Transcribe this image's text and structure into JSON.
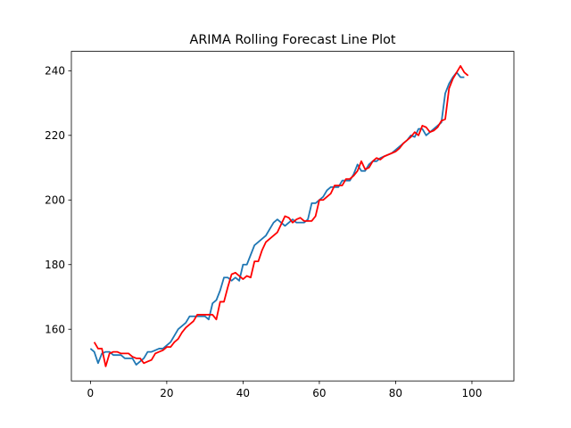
{
  "chart_data": {
    "type": "line",
    "title": "ARIMA Rolling Forecast Line Plot",
    "xlabel": "",
    "ylabel": "",
    "xlim": [
      -5,
      111
    ],
    "ylim": [
      144,
      246
    ],
    "xticks": [
      0,
      20,
      40,
      60,
      80,
      100
    ],
    "yticks": [
      160,
      180,
      200,
      220,
      240
    ],
    "grid": false,
    "series": [
      {
        "color": "#1f77b4",
        "values": [
          154,
          153,
          149.5,
          152.5,
          153,
          153,
          152,
          152,
          152,
          151,
          151,
          151,
          149,
          150,
          151,
          153,
          153,
          153.5,
          154,
          154,
          155,
          156,
          158,
          160,
          161,
          162,
          164,
          164,
          164,
          164,
          164,
          163,
          168,
          169,
          172,
          176,
          176,
          175,
          176,
          175,
          180,
          180,
          183,
          186,
          187,
          188,
          189,
          191,
          193,
          194,
          193,
          192,
          193,
          194,
          193,
          193,
          193,
          194,
          199,
          199,
          200,
          201,
          203,
          204,
          204,
          204,
          206,
          206,
          206,
          208,
          211,
          209,
          209,
          211,
          212,
          212,
          213,
          213.5,
          214,
          214.5,
          215.5,
          216.5,
          217.5,
          218.5,
          220,
          219.5,
          222,
          222,
          220,
          221,
          222,
          223,
          224,
          233,
          236,
          238,
          239.5,
          238,
          238
        ]
      },
      {
        "color": "#ff0000",
        "values": [
          156,
          154,
          154,
          148.5,
          152.5,
          153,
          153,
          152.5,
          152.5,
          152.5,
          151.5,
          151,
          151,
          149.5,
          150,
          150.5,
          152.5,
          153,
          153.5,
          154.5,
          154.5,
          156,
          157,
          159,
          160.5,
          161.5,
          162.5,
          164.5,
          164.5,
          164.5,
          164.5,
          164.5,
          163,
          168.5,
          168.5,
          173,
          177,
          177.5,
          176.5,
          175.5,
          176.5,
          176,
          181,
          181,
          184.5,
          187,
          188,
          189,
          190,
          192.5,
          195,
          194.5,
          193,
          194,
          194.5,
          193.5,
          193.5,
          193.5,
          195,
          200,
          200,
          201,
          202,
          204.5,
          204.5,
          204.5,
          206.5,
          206.5,
          207.5,
          209,
          212,
          209.5,
          210,
          212,
          213,
          212.5,
          213.5,
          214,
          214.5,
          215,
          216,
          217.5,
          218.5,
          219.5,
          221,
          220,
          223,
          222.5,
          221,
          221.5,
          222.5,
          224.5,
          225,
          234.5,
          237.5,
          239.5,
          241.5,
          239.5,
          238.5
        ],
        "x_offset": 1
      }
    ]
  }
}
